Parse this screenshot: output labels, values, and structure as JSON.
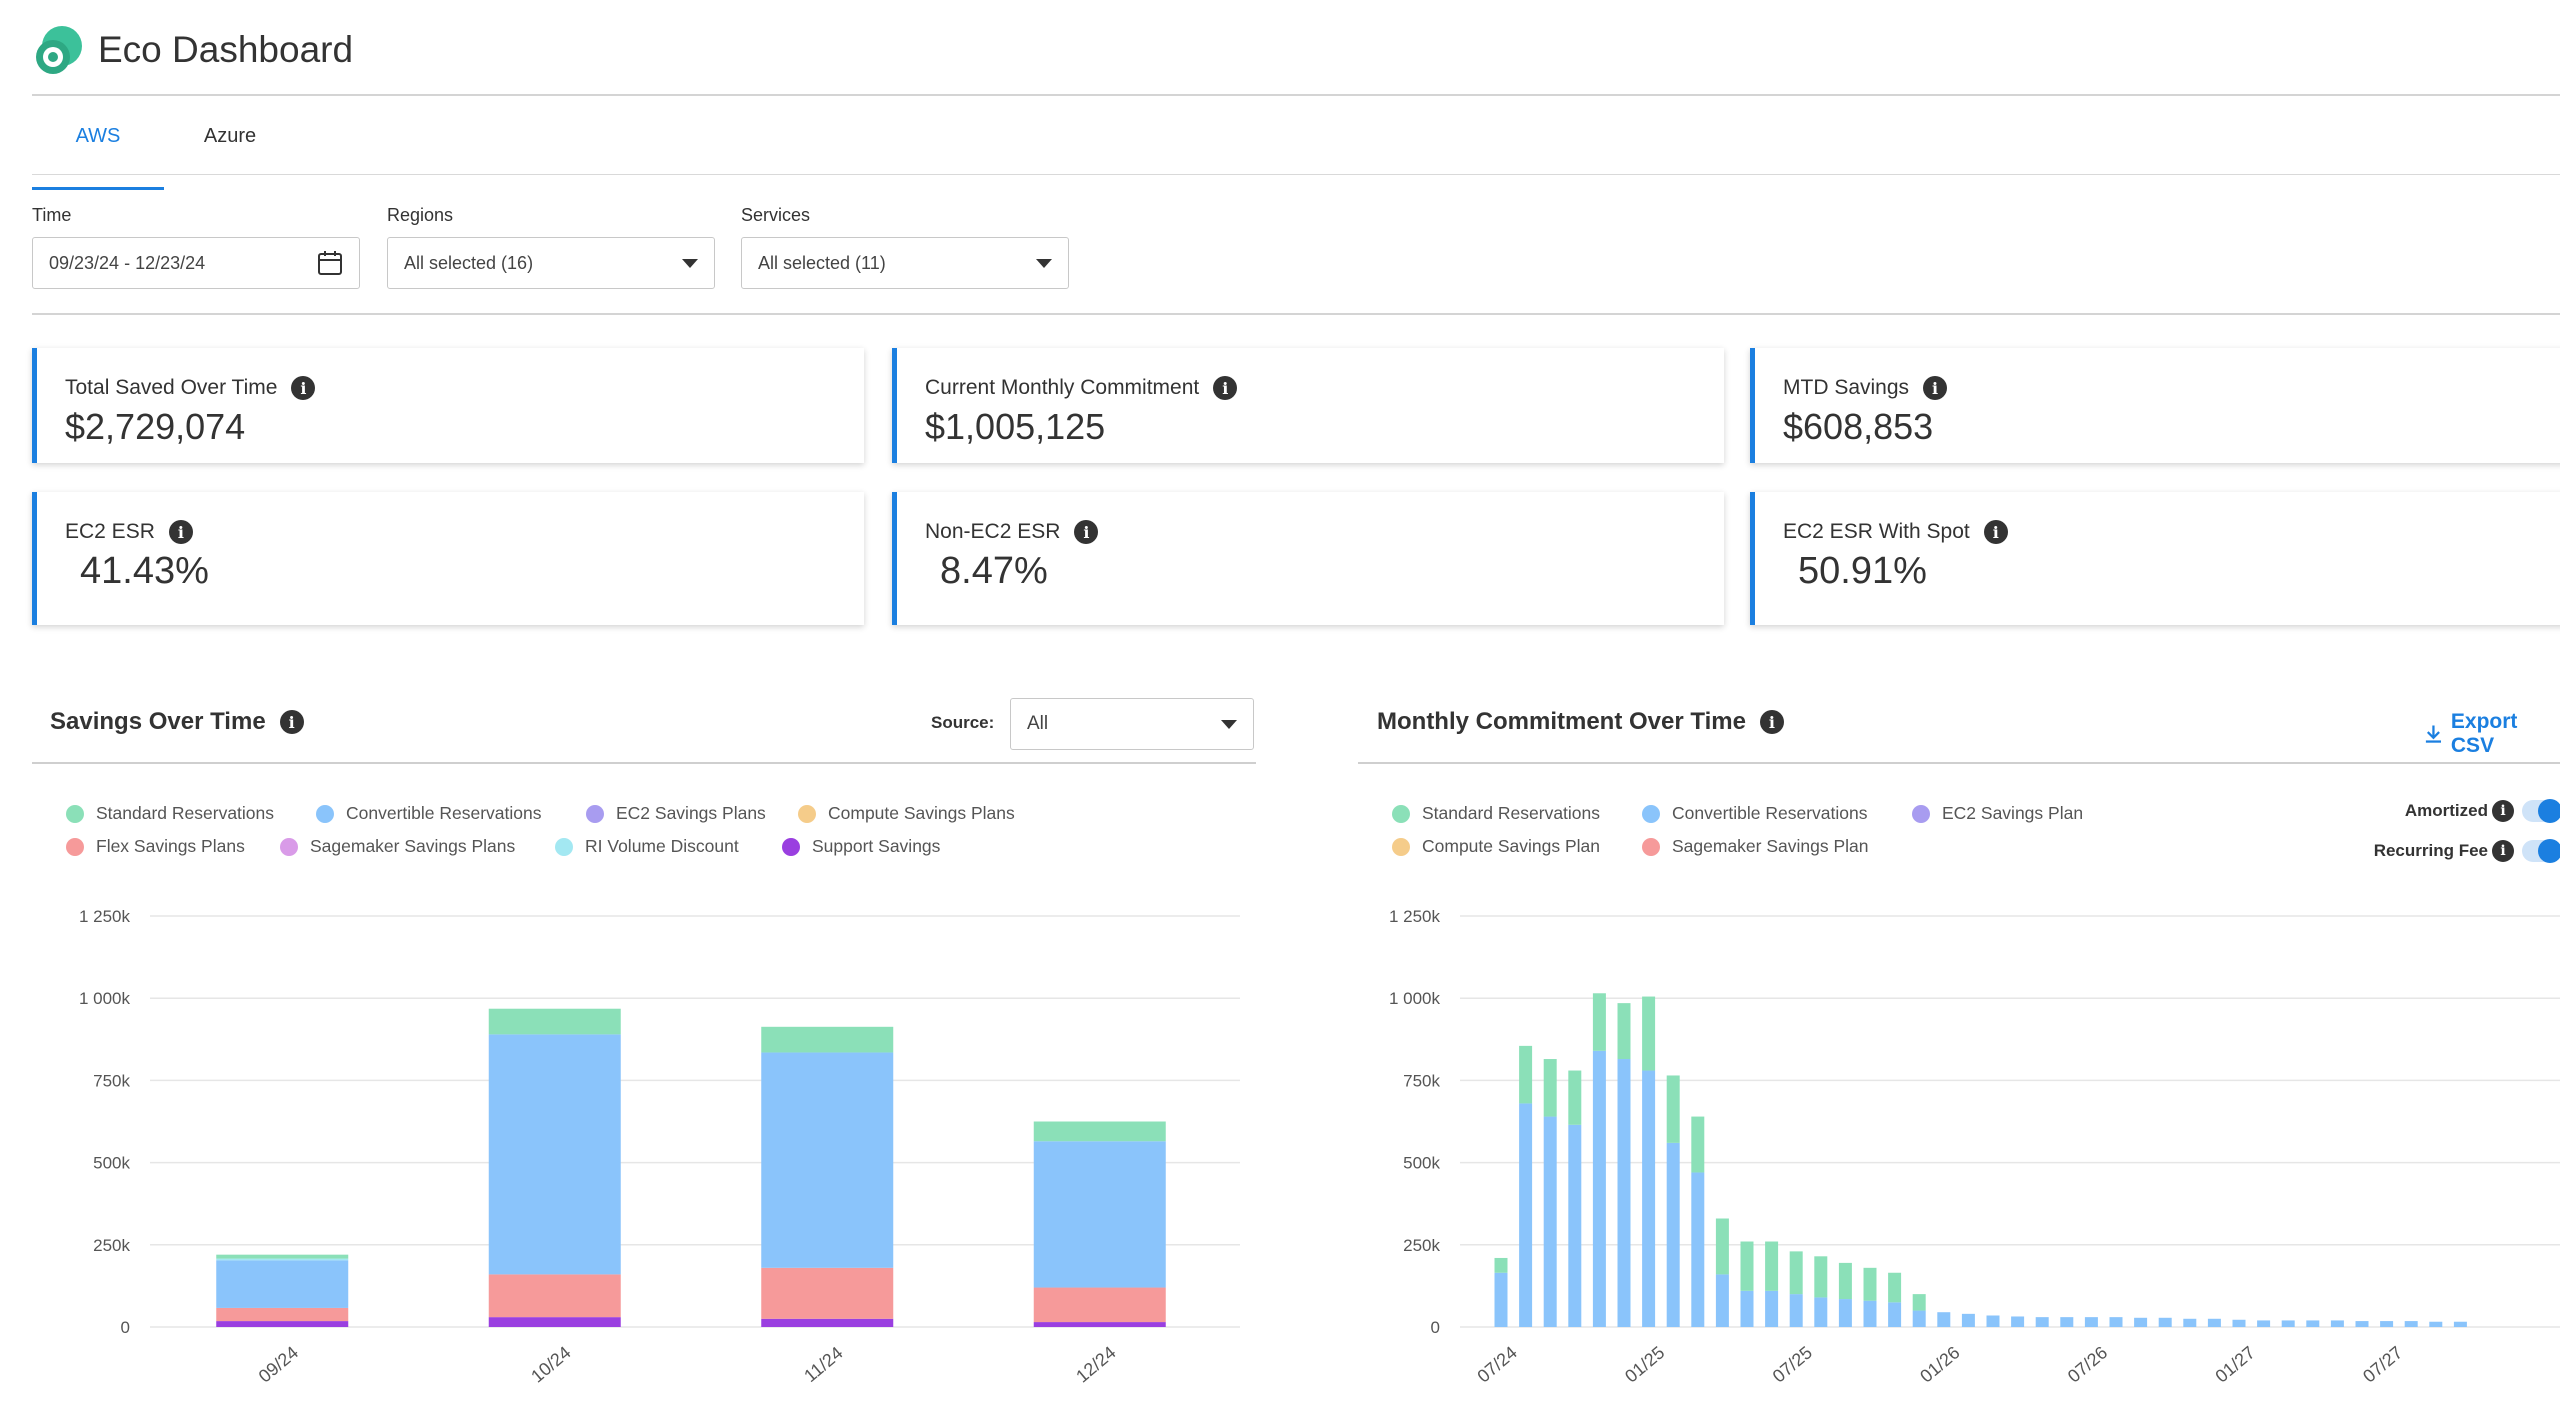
{
  "app": {
    "title": "Eco Dashboard"
  },
  "tabs": [
    {
      "label": "AWS",
      "active": true
    },
    {
      "label": "Azure",
      "active": false
    }
  ],
  "filters": {
    "time": {
      "label": "Time",
      "value": "09/23/24 - 12/23/24"
    },
    "regions": {
      "label": "Regions",
      "value": "All selected (16)"
    },
    "services": {
      "label": "Services",
      "value": "All selected (11)"
    }
  },
  "stats": [
    {
      "label": "Total Saved Over Time",
      "value": "$2,729,074"
    },
    {
      "label": "Current Monthly Commitment",
      "value": "$1,005,125"
    },
    {
      "label": "MTD Savings",
      "value": "$608,853"
    },
    {
      "label": "EC2 ESR",
      "value": "41.43%"
    },
    {
      "label": "Non-EC2 ESR",
      "value": "8.47%"
    },
    {
      "label": "EC2 ESR With Spot",
      "value": "50.91%"
    }
  ],
  "colors": {
    "accent": "#1b7fe0",
    "standard": "#8be0b8",
    "convertible": "#8ac4fb",
    "ec2_sp": "#a89cf0",
    "compute_sp": "#f5cc8a",
    "flex_sp": "#f69a9a",
    "sagemaker_sp": "#d99be8",
    "ri_volume": "#a3e8f2",
    "support": "#9a3fe0"
  },
  "savings_panel": {
    "title": "Savings Over Time",
    "source_label": "Source:",
    "source_value": "All",
    "legend": [
      {
        "label": "Standard Reservations",
        "color": "#8be0b8"
      },
      {
        "label": "Convertible Reservations",
        "color": "#8ac4fb"
      },
      {
        "label": "EC2 Savings Plans",
        "color": "#a89cf0"
      },
      {
        "label": "Compute Savings Plans",
        "color": "#f5cc8a"
      },
      {
        "label": "Flex Savings Plans",
        "color": "#f69a9a"
      },
      {
        "label": "Sagemaker Savings Plans",
        "color": "#d99be8"
      },
      {
        "label": "RI Volume Discount",
        "color": "#a3e8f2"
      },
      {
        "label": "Support Savings",
        "color": "#9a3fe0"
      }
    ]
  },
  "commitment_panel": {
    "title": "Monthly Commitment Over Time",
    "export_label": "Export CSV",
    "legend": [
      {
        "label": "Standard Reservations",
        "color": "#8be0b8"
      },
      {
        "label": "Convertible Reservations",
        "color": "#8ac4fb"
      },
      {
        "label": "EC2 Savings Plan",
        "color": "#a89cf0"
      },
      {
        "label": "Compute Savings Plan",
        "color": "#f5cc8a"
      },
      {
        "label": "Sagemaker Savings Plan",
        "color": "#f69a9a"
      }
    ],
    "toggles": [
      {
        "label": "Amortized",
        "on": true
      },
      {
        "label": "Recurring Fee",
        "on": true
      }
    ]
  },
  "chart_data": [
    {
      "type": "bar",
      "stacked": true,
      "title": "Savings Over Time",
      "categories": [
        "09/24",
        "10/24",
        "11/24",
        "12/24"
      ],
      "ylim": [
        0,
        1250000
      ],
      "yticks": [
        "0",
        "250k",
        "500k",
        "750k",
        "1 000k",
        "1 250k"
      ],
      "grid": true,
      "series": [
        {
          "name": "Support Savings",
          "values": [
            18000,
            30000,
            25000,
            15000
          ]
        },
        {
          "name": "Flex Savings Plans",
          "values": [
            40000,
            130000,
            155000,
            105000
          ]
        },
        {
          "name": "Convertible Reservations",
          "values": [
            145000,
            730000,
            655000,
            445000
          ]
        },
        {
          "name": "RI Volume Discount",
          "values": [
            5000,
            0,
            0,
            0
          ]
        },
        {
          "name": "Standard Reservations",
          "values": [
            12000,
            78000,
            78000,
            60000
          ]
        }
      ]
    },
    {
      "type": "bar",
      "stacked": true,
      "title": "Monthly Commitment Over Time",
      "x_tick_labels": [
        "07/24",
        "01/25",
        "07/25",
        "01/26",
        "07/26",
        "01/27",
        "07/27"
      ],
      "x_tick_every": 6,
      "ylim": [
        0,
        1250000
      ],
      "yticks": [
        "0",
        "250k",
        "500k",
        "750k",
        "1 000k",
        "1 250k"
      ],
      "grid": true,
      "series": [
        {
          "name": "Convertible Reservations",
          "values": [
            165000,
            680000,
            640000,
            615000,
            840000,
            815000,
            780000,
            560000,
            470000,
            160000,
            110000,
            110000,
            100000,
            90000,
            85000,
            80000,
            75000,
            50000,
            45000,
            40000,
            35000,
            32000,
            30000,
            30000,
            30000,
            30000,
            28000,
            28000,
            25000,
            25000,
            22000,
            20000,
            20000,
            20000,
            20000,
            18000,
            18000,
            18000,
            16000,
            16000
          ]
        },
        {
          "name": "Standard Reservations",
          "values": [
            45000,
            175000,
            175000,
            165000,
            175000,
            170000,
            225000,
            205000,
            170000,
            170000,
            150000,
            150000,
            130000,
            125000,
            110000,
            100000,
            90000,
            50000,
            0,
            0,
            0,
            0,
            0,
            0,
            0,
            0,
            0,
            0,
            0,
            0,
            0,
            0,
            0,
            0,
            0,
            0,
            0,
            0,
            0,
            0
          ]
        }
      ]
    }
  ]
}
